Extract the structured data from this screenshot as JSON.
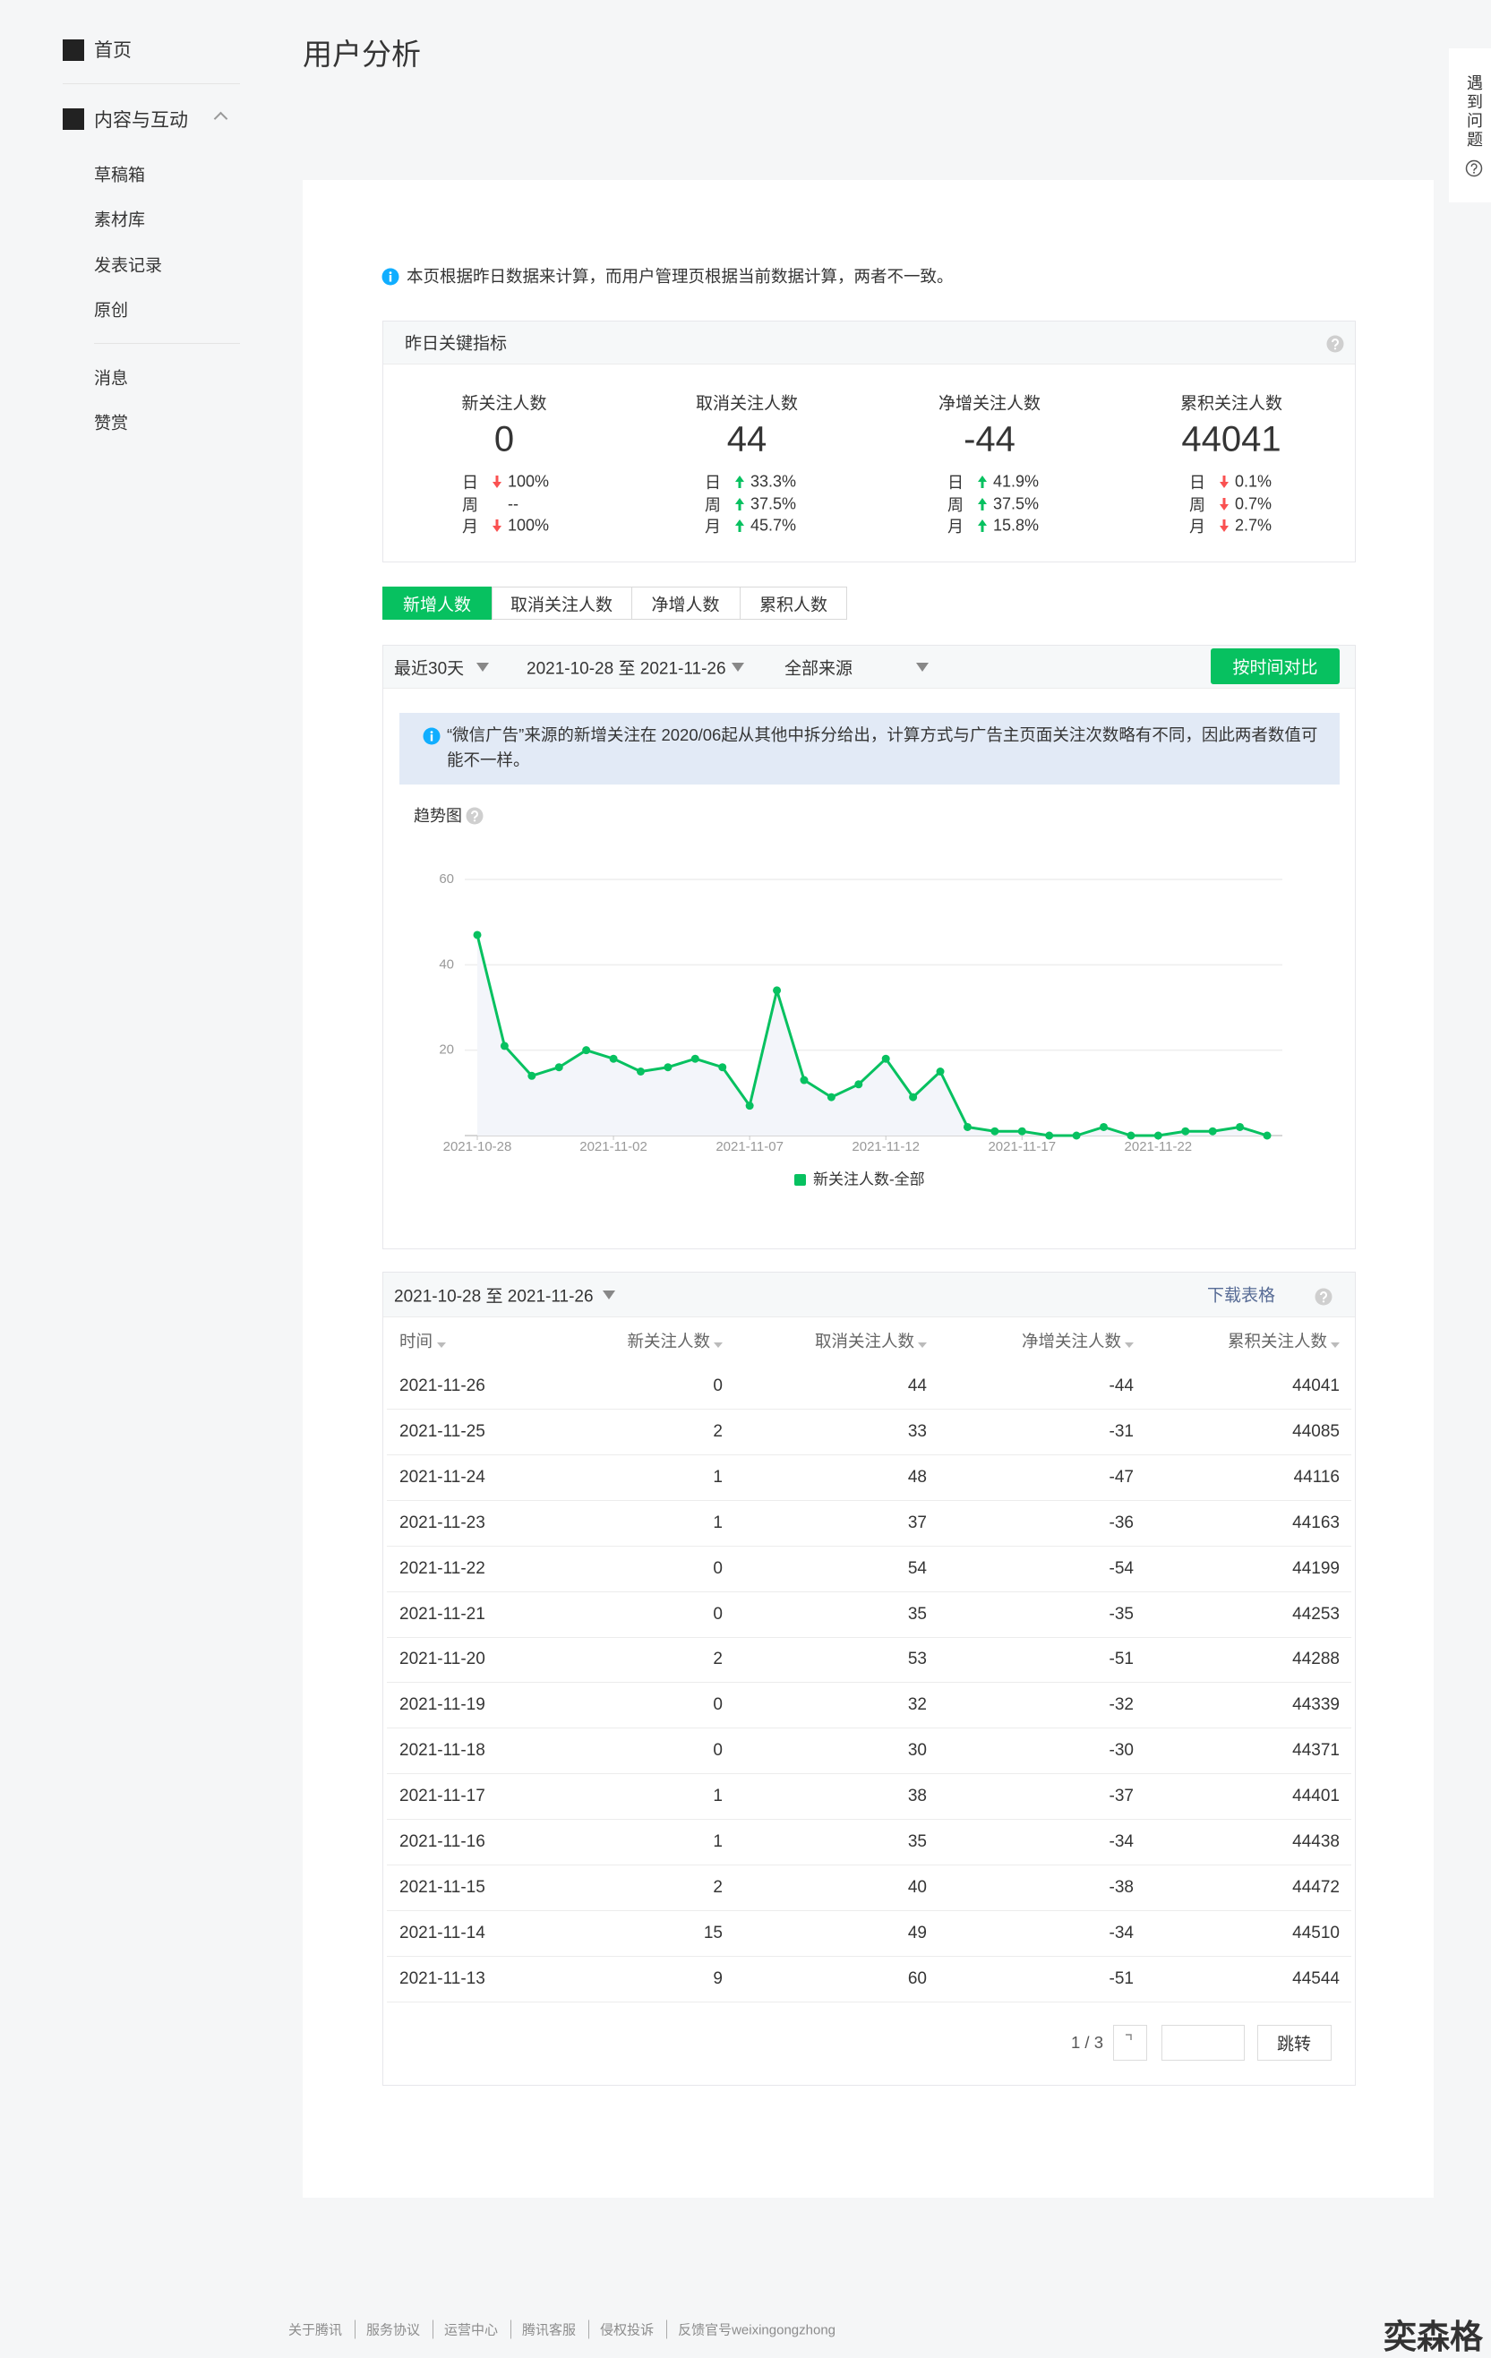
{
  "sidebar": {
    "home": "首页",
    "section": "内容与互动",
    "items": [
      "草稿箱",
      "素材库",
      "发表记录",
      "原创"
    ],
    "extra": [
      "消息",
      "赞赏"
    ]
  },
  "header": {
    "title": "用户分析"
  },
  "help": "遇到问题",
  "notice": "本页根据昨日数据来计算，而用户管理页根据当前数据计算，两者不一致。",
  "metrics": {
    "title": "昨日关键指标",
    "cards": [
      {
        "label": "新关注人数",
        "value": 0,
        "changes": [
          {
            "period": "日",
            "trend": "down",
            "text": "100%"
          },
          {
            "period": "周",
            "trend": null,
            "text": "--"
          },
          {
            "period": "月",
            "trend": "down",
            "text": "100%"
          }
        ]
      },
      {
        "label": "取消关注人数",
        "value": 44,
        "changes": [
          {
            "period": "日",
            "trend": "up",
            "text": "33.3%"
          },
          {
            "period": "周",
            "trend": "up",
            "text": "37.5%"
          },
          {
            "period": "月",
            "trend": "up",
            "text": "45.7%"
          }
        ]
      },
      {
        "label": "净增关注人数",
        "value": -44,
        "changes": [
          {
            "period": "日",
            "trend": "up",
            "text": "41.9%"
          },
          {
            "period": "周",
            "trend": "up",
            "text": "37.5%"
          },
          {
            "period": "月",
            "trend": "up",
            "text": "15.8%"
          }
        ]
      },
      {
        "label": "累积关注人数",
        "value": 44041,
        "changes": [
          {
            "period": "日",
            "trend": "down",
            "text": "0.1%"
          },
          {
            "period": "周",
            "trend": "down",
            "text": "0.7%"
          },
          {
            "period": "月",
            "trend": "down",
            "text": "2.7%"
          }
        ]
      }
    ]
  },
  "tabs": {
    "items": [
      "新增人数",
      "取消关注人数",
      "净增人数",
      "累积人数"
    ],
    "active": 0
  },
  "filters": {
    "range": "最近30天",
    "dates": "2021-10-28 至 2021-11-26",
    "source": "全部来源",
    "compare": "按时间对比"
  },
  "chart_notice": "“微信广告”来源的新增关注在 2020/06起从其他中拆分给出，计算方式与广告主页面关注次数略有不同，因此两者数值可能不一样。",
  "chart_data": {
    "type": "line",
    "title": "趋势图",
    "categories": [
      "2021-10-28",
      null,
      null,
      null,
      null,
      "2021-11-02",
      null,
      null,
      null,
      null,
      "2021-11-07",
      null,
      null,
      null,
      null,
      "2021-11-12",
      null,
      null,
      null,
      null,
      "2021-11-17",
      null,
      null,
      null,
      null,
      "2021-11-22",
      null,
      null,
      null,
      null
    ],
    "series": [
      {
        "name": "新关注人数-全部",
        "color": "#07c160",
        "values": [
          47,
          21,
          14,
          16,
          20,
          18,
          15,
          16,
          18,
          16,
          7,
          34,
          13,
          9,
          12,
          18,
          9,
          15,
          2,
          1,
          1,
          0,
          0,
          2,
          0,
          0,
          1,
          1,
          2,
          0
        ]
      }
    ],
    "ylim": [
      0,
      60
    ],
    "yticks": [
      20,
      40,
      60
    ],
    "grid": true,
    "legend": "bottom"
  },
  "table": {
    "dates": "2021-10-28 至 2021-11-26",
    "download": "下载表格",
    "columns": [
      "时间",
      "新关注人数",
      "取消关注人数",
      "净增关注人数",
      "累积关注人数"
    ],
    "rows": [
      [
        "2021-11-26",
        0,
        44,
        -44,
        44041
      ],
      [
        "2021-11-25",
        2,
        33,
        -31,
        44085
      ],
      [
        "2021-11-24",
        1,
        48,
        -47,
        44116
      ],
      [
        "2021-11-23",
        1,
        37,
        -36,
        44163
      ],
      [
        "2021-11-22",
        0,
        54,
        -54,
        44199
      ],
      [
        "2021-11-21",
        0,
        35,
        -35,
        44253
      ],
      [
        "2021-11-20",
        2,
        53,
        -51,
        44288
      ],
      [
        "2021-11-19",
        0,
        32,
        -32,
        44339
      ],
      [
        "2021-11-18",
        0,
        30,
        -30,
        44371
      ],
      [
        "2021-11-17",
        1,
        38,
        -37,
        44401
      ],
      [
        "2021-11-16",
        1,
        35,
        -34,
        44438
      ],
      [
        "2021-11-15",
        2,
        40,
        -38,
        44472
      ],
      [
        "2021-11-14",
        15,
        49,
        -34,
        44510
      ],
      [
        "2021-11-13",
        9,
        60,
        -51,
        44544
      ]
    ],
    "page": "1 / 3",
    "jump": "跳转"
  },
  "footer": {
    "links": [
      "关于腾讯",
      "服务协议",
      "运营中心",
      "腾讯客服",
      "侵权投诉",
      "反馈官号weixingongzhong"
    ]
  },
  "watermark": "奕森格"
}
